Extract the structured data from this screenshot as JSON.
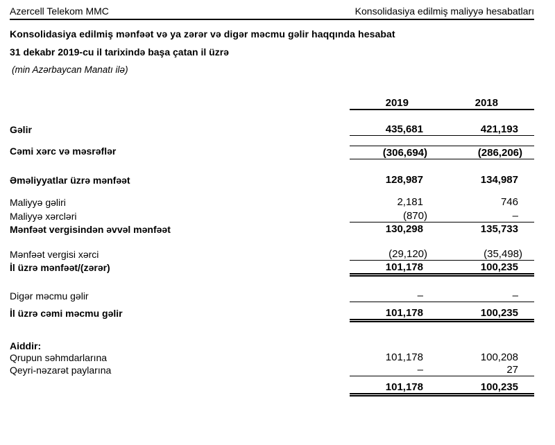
{
  "doc": {
    "header_left": "Azercell Telekom MMC",
    "header_right": "Konsolidasiya edilmiş maliyyə hesabatları",
    "title": "Konsolidasiya edilmiş mənfəət və ya zərər və digər məcmu gəlir haqqında hesabat",
    "subtitle": "31 dekabr 2019-cu il tarixində başa çatan il üzrə",
    "currency_note": "(min Azərbaycan Manatı ilə)"
  },
  "table": {
    "columns": {
      "col1": "2019",
      "col2": "2018"
    },
    "rows": [
      {
        "label": "Gəlir",
        "v2019": "435,681",
        "v2018": "421,193"
      },
      {
        "label": "Cəmi xərc və məsrəflər",
        "v2019": "(306,694)",
        "v2018": "(286,206)"
      },
      {
        "label": "Əməliyyatlar üzrə mənfəət",
        "v2019": "128,987",
        "v2018": "134,987"
      },
      {
        "label": "Maliyyə gəliri",
        "v2019": "2,181",
        "v2018": "746"
      },
      {
        "label": "Maliyyə xərcləri",
        "v2019": "(870)",
        "v2018": "–"
      },
      {
        "label": "Mənfəət vergisindən əvvəl mənfəət",
        "v2019": "130,298",
        "v2018": "135,733"
      },
      {
        "label": "Mənfəət vergisi xərci",
        "v2019": "(29,120)",
        "v2018": "(35,498)"
      },
      {
        "label": "İl üzrə mənfəət/(zərər)",
        "v2019": "101,178",
        "v2018": "100,235"
      },
      {
        "label": "Digər məcmu gəlir",
        "v2019": "–",
        "v2018": "–"
      },
      {
        "label": "İl üzrə cəmi məcmu gəlir",
        "v2019": "101,178",
        "v2018": "100,235"
      },
      {
        "label": "Aiddir:",
        "v2019": "",
        "v2018": ""
      },
      {
        "label": "Qrupun səhmdarlarına",
        "v2019": "101,178",
        "v2018": "100,208"
      },
      {
        "label": "Qeyri-nəzarət paylarına",
        "v2019": "–",
        "v2018": "27"
      },
      {
        "label": "",
        "v2019": "101,178",
        "v2018": "100,235"
      }
    ]
  },
  "colors": {
    "text": "#000000",
    "background": "#ffffff",
    "rule": "#000000"
  }
}
